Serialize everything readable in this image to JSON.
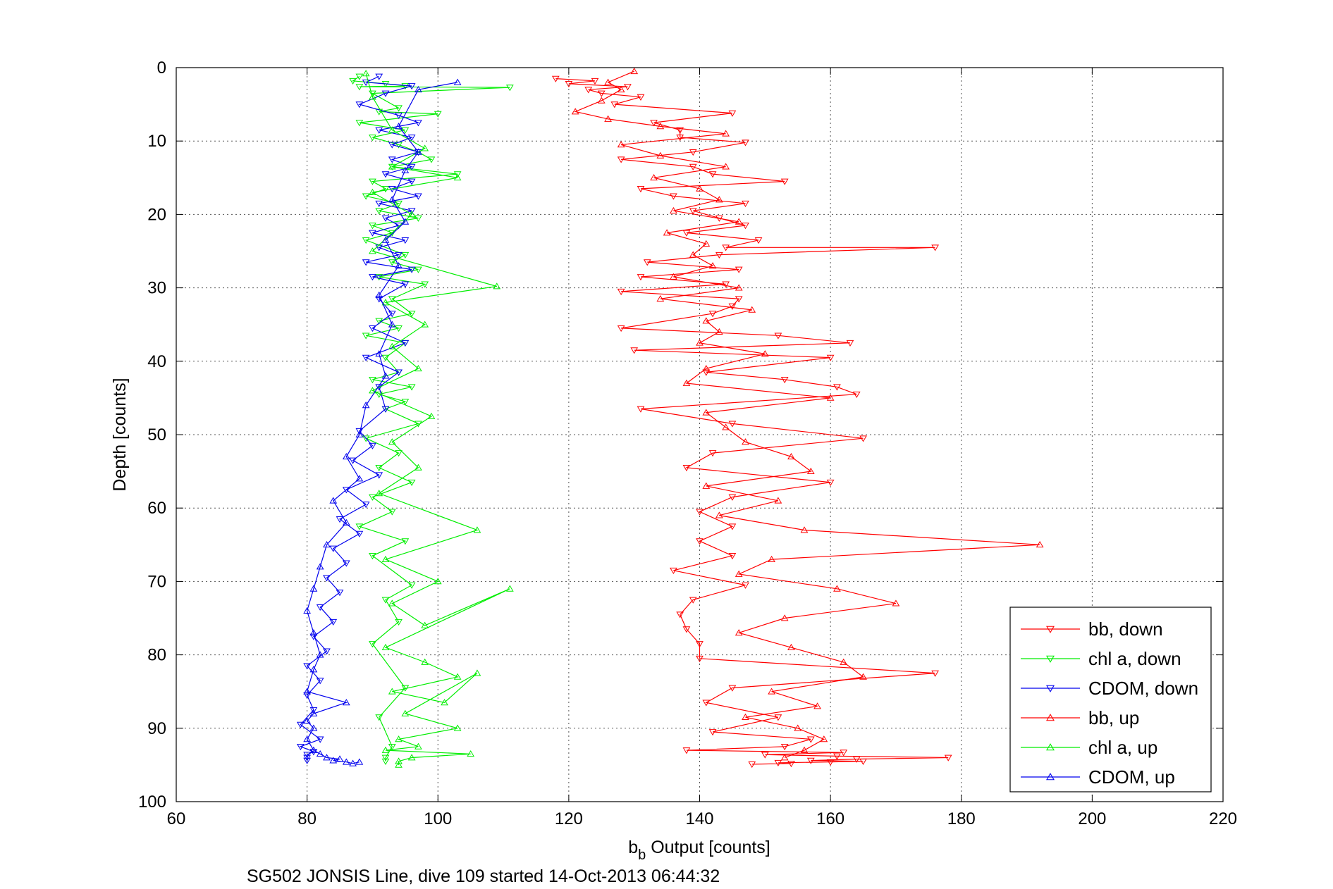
{
  "chart_data": {
    "type": "line",
    "caption": "SG502 JONSIS Line, dive 109 started 14-Oct-2013 06:44:32",
    "xlabel": "b",
    "xlabel_sub": "b",
    "xlabel_rest": " Output [counts]",
    "ylabel": "Depth [counts]",
    "xlim": [
      60,
      220
    ],
    "ylim": [
      0,
      100
    ],
    "y_reversed": true,
    "grid": true,
    "legend_position": "bottom-right",
    "x_ticks": [
      "60",
      "80",
      "100",
      "120",
      "140",
      "160",
      "180",
      "200",
      "220"
    ],
    "y_ticks": [
      "0",
      "10",
      "20",
      "30",
      "40",
      "50",
      "60",
      "70",
      "80",
      "90",
      "100"
    ],
    "series": [
      {
        "name": "bb, down",
        "color": "#ff0000",
        "marker": "triangle-down",
        "x": [
          118,
          124,
          120,
          129,
          123,
          125,
          131,
          127,
          145,
          133,
          137,
          137,
          147,
          139,
          128,
          139,
          142,
          153,
          131,
          136,
          147,
          139,
          143,
          147,
          138,
          149,
          144,
          176,
          143,
          132,
          146,
          131,
          144,
          128,
          146,
          145,
          142,
          128,
          152,
          163,
          130,
          160,
          141,
          153,
          161,
          164,
          131,
          145,
          165,
          142,
          138,
          160,
          145,
          140,
          145,
          140,
          145,
          136,
          147,
          139,
          137,
          138,
          140,
          140,
          176,
          145,
          141,
          152,
          142,
          157,
          153,
          138,
          162,
          150,
          161,
          178,
          164,
          157,
          165,
          160,
          152,
          154,
          148
        ],
        "y": [
          1.5,
          1.8,
          2.2,
          2.6,
          3.0,
          3.5,
          4.0,
          5.0,
          6.2,
          7.5,
          8.5,
          9.5,
          10.2,
          11.5,
          12.5,
          13.5,
          14.5,
          15.5,
          16.5,
          17.5,
          18.5,
          19.5,
          20.5,
          21.5,
          22.5,
          23.5,
          24.5,
          24.5,
          25.5,
          26.5,
          27.5,
          28.5,
          29.5,
          30.5,
          31.5,
          32.5,
          33.5,
          35.5,
          36.5,
          37.5,
          38.5,
          39.5,
          41.5,
          42.5,
          43.5,
          44.5,
          46.5,
          48.5,
          50.5,
          52.5,
          54.5,
          56.5,
          58.5,
          60.5,
          62.5,
          64.5,
          66.5,
          68.5,
          70.5,
          72.5,
          74.5,
          76.5,
          78.5,
          80.5,
          82.5,
          84.5,
          86.5,
          88.5,
          90.5,
          91.5,
          92.5,
          93.0,
          93.3,
          93.6,
          93.8,
          94.0,
          94.2,
          94.4,
          94.5,
          94.6,
          94.7,
          94.8,
          94.9
        ]
      },
      {
        "name": "chl a, down",
        "color": "#00ee00",
        "marker": "triangle-down",
        "x": [
          88,
          87,
          92,
          95,
          88,
          111,
          90,
          94,
          91,
          100,
          88,
          95,
          90,
          94,
          97,
          99,
          93,
          103,
          90,
          92,
          89,
          94,
          91,
          97,
          90,
          93,
          89,
          95,
          93,
          97,
          91,
          98,
          93,
          96,
          91,
          94,
          89,
          95,
          92,
          94,
          90,
          96,
          91,
          95,
          92,
          97,
          89,
          94,
          91,
          96,
          90,
          93,
          88,
          95,
          90,
          96,
          92,
          94,
          90,
          95,
          91,
          93,
          92,
          92
        ],
        "y": [
          1.2,
          1.8,
          2.2,
          2.5,
          2.6,
          2.7,
          3.5,
          5.5,
          6.0,
          6.3,
          7.5,
          8.5,
          9.5,
          10.5,
          11.5,
          12.5,
          13.5,
          14.5,
          15.5,
          16.5,
          17.5,
          18.5,
          19.5,
          20.5,
          21.5,
          22.5,
          23.5,
          25.5,
          26.5,
          27.5,
          28.5,
          29.5,
          31.5,
          33.5,
          34.5,
          35.5,
          36.5,
          37.5,
          39.5,
          41.5,
          42.5,
          43.5,
          44.5,
          45.5,
          46.5,
          48.5,
          50.5,
          52.5,
          54.5,
          56.5,
          58.5,
          60.5,
          62.5,
          64.5,
          66.5,
          70.5,
          72.5,
          75.5,
          78.5,
          84.5,
          88.5,
          92.5,
          94.0,
          94.5
        ]
      },
      {
        "name": "CDOM, down",
        "color": "#0000ee",
        "marker": "triangle-down",
        "x": [
          91,
          89,
          96,
          92,
          88,
          94,
          97,
          91,
          96,
          93,
          97,
          93,
          96,
          92,
          96,
          93,
          97,
          91,
          96,
          92,
          94,
          90,
          95,
          91,
          94,
          89,
          96,
          90,
          95,
          91,
          93,
          90,
          95,
          89,
          94,
          91,
          92,
          88,
          90,
          87,
          91,
          86,
          89,
          85,
          88,
          84,
          86,
          83,
          85,
          82,
          84,
          81,
          83,
          80,
          82,
          80,
          81,
          79,
          82,
          79,
          81,
          80,
          80,
          80
        ],
        "y": [
          1.2,
          2.0,
          2.5,
          3.5,
          5.0,
          6.5,
          7.5,
          8.5,
          9.5,
          10.5,
          11.5,
          12.5,
          13.5,
          14.5,
          15.5,
          16.5,
          17.5,
          18.5,
          19.5,
          20.5,
          21.5,
          22.5,
          23.5,
          24.5,
          25.5,
          26.5,
          27.5,
          28.5,
          29.5,
          31.5,
          33.5,
          35.5,
          37.5,
          39.5,
          41.5,
          43.5,
          46.5,
          49.5,
          51.5,
          53.5,
          55.5,
          57.5,
          59.5,
          61.5,
          63.5,
          65.5,
          67.5,
          69.5,
          71.5,
          73.5,
          75.5,
          77.5,
          79.5,
          81.5,
          83.5,
          85.5,
          87.5,
          89.5,
          91.5,
          92.5,
          93.2,
          93.6,
          94.0,
          94.4
        ]
      },
      {
        "name": "bb, up",
        "color": "#ff0000",
        "marker": "triangle-up",
        "x": [
          130,
          126,
          128,
          125,
          121,
          126,
          134,
          144,
          128,
          134,
          144,
          133,
          140,
          143,
          136,
          146,
          135,
          141,
          139,
          142,
          136,
          146,
          134,
          148,
          141,
          143,
          140,
          150,
          141,
          138,
          160,
          141,
          144,
          147,
          154,
          157,
          141,
          152,
          143,
          156,
          192,
          151,
          146,
          161,
          170,
          153,
          146,
          154,
          162,
          165,
          151,
          158,
          147,
          155,
          159,
          156,
          153
        ],
        "y": [
          0.5,
          2.0,
          3.0,
          4.5,
          6.0,
          7.0,
          8.0,
          9.0,
          10.5,
          12.0,
          13.5,
          15.0,
          16.5,
          18.0,
          19.5,
          21.0,
          22.5,
          24.0,
          25.5,
          27.0,
          28.5,
          30.0,
          31.5,
          33.0,
          34.5,
          36.0,
          37.5,
          39.0,
          41.0,
          43.0,
          45.0,
          47.0,
          49.0,
          51.0,
          53.0,
          55.0,
          57.0,
          59.0,
          61.0,
          63.0,
          65.0,
          67.0,
          69.0,
          71.0,
          73.0,
          75.0,
          77.0,
          79.0,
          81.0,
          83.0,
          85.0,
          87.0,
          88.5,
          90.0,
          91.5,
          93.0,
          94.0
        ]
      },
      {
        "name": "chl a, up",
        "color": "#00ee00",
        "marker": "triangle-up",
        "x": [
          89,
          90,
          93,
          98,
          93,
          103,
          90,
          96,
          90,
          109,
          92,
          98,
          93,
          97,
          90,
          99,
          93,
          97,
          91,
          106,
          92,
          100,
          93,
          98,
          111,
          92,
          98,
          103,
          93,
          101,
          106,
          95,
          103,
          94,
          97,
          92,
          105,
          96,
          94,
          94
        ],
        "y": [
          0.8,
          4.0,
          8.5,
          11.0,
          13.5,
          15.0,
          17.0,
          20.0,
          25.0,
          29.8,
          32.0,
          35.0,
          38.0,
          41.0,
          44.0,
          47.5,
          51.0,
          54.5,
          58.0,
          63.0,
          67.0,
          70.0,
          73.0,
          76.0,
          71.0,
          79.0,
          81.0,
          83.0,
          85.0,
          86.5,
          82.5,
          88.0,
          90.0,
          91.5,
          92.5,
          93.0,
          93.5,
          94.0,
          94.5,
          95.0
        ]
      },
      {
        "name": "CDOM, up",
        "color": "#0000ee",
        "marker": "triangle-up",
        "x": [
          103,
          97,
          94,
          97,
          95,
          93,
          95,
          92,
          94,
          91,
          93,
          91,
          92,
          89,
          88,
          86,
          88,
          84,
          86,
          83,
          82,
          81,
          80,
          81,
          82,
          81,
          80,
          86,
          81,
          80,
          81,
          80,
          81,
          82,
          83,
          85,
          84,
          86,
          87,
          88
        ],
        "y": [
          2.0,
          3.0,
          8.0,
          11.5,
          14.0,
          18.0,
          21.0,
          23.5,
          27.0,
          31.0,
          35.0,
          39.0,
          42.0,
          46.0,
          50.0,
          53.0,
          56.0,
          59.0,
          62.0,
          65.0,
          68.0,
          71.0,
          74.0,
          77.0,
          80.0,
          82.0,
          85.0,
          86.5,
          88.0,
          89.0,
          90.0,
          91.5,
          93.0,
          93.5,
          94.0,
          94.2,
          94.4,
          94.6,
          94.8,
          94.6
        ]
      }
    ]
  }
}
